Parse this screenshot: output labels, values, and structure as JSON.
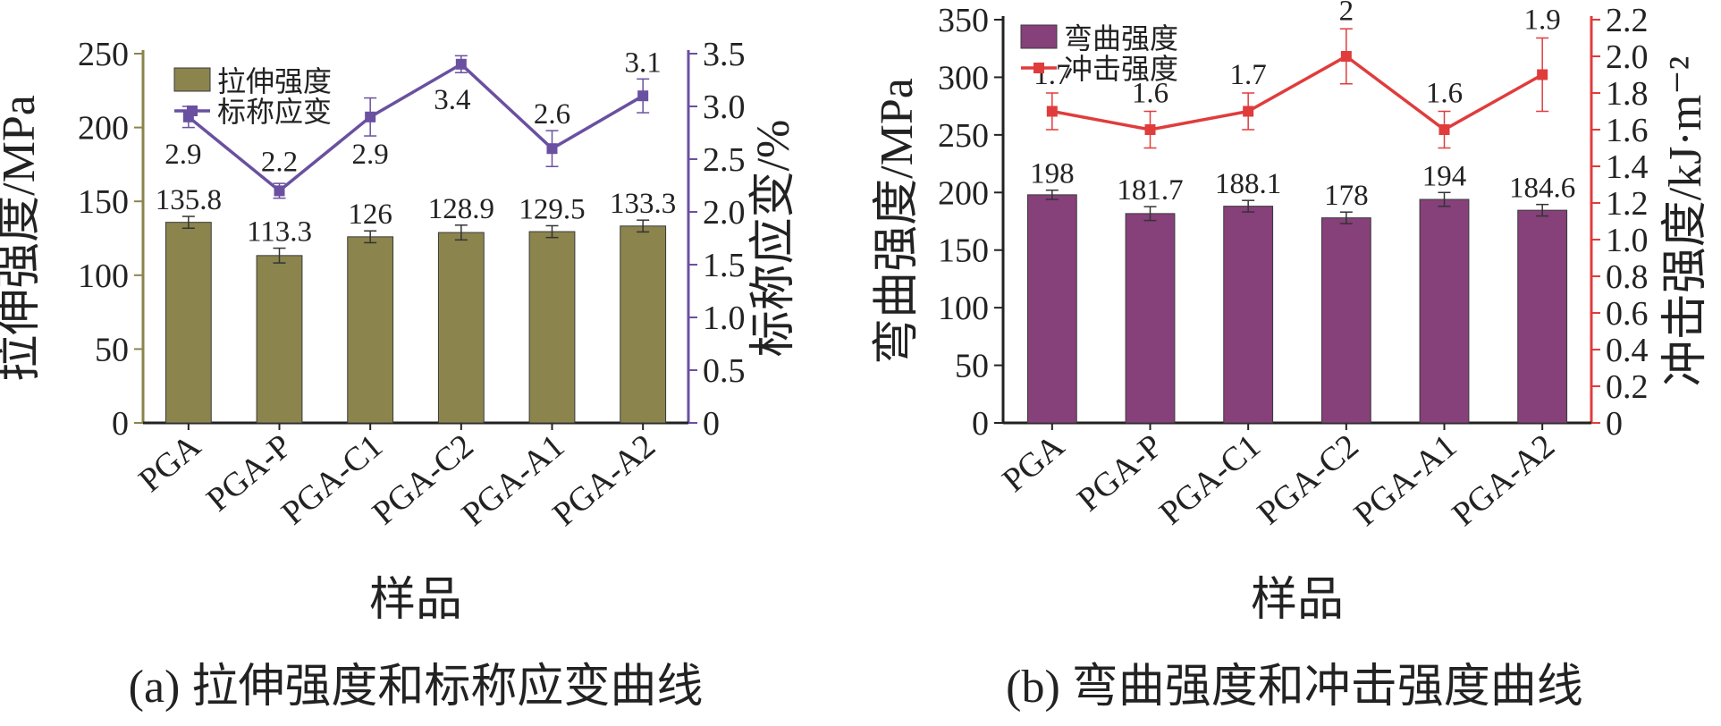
{
  "chart_data": [
    {
      "type": "bar",
      "subplot_label": "(a) 拉伸强度和标称应变曲线",
      "categories": [
        "PGA",
        "PGA-P",
        "PGA-C1",
        "PGA-C2",
        "PGA-A1",
        "PGA-A2"
      ],
      "xlabel": "样品",
      "ylabel_left": "拉伸强度/MPa",
      "ylabel_right": "标称应变/%",
      "ylim_left": [
        0,
        250
      ],
      "yticks_left": [
        "0",
        "50",
        "100",
        "150",
        "200",
        "250"
      ],
      "ylim_right": [
        0,
        3.5
      ],
      "yticks_right": [
        "0",
        "0.5",
        "1.0",
        "1.5",
        "2.0",
        "2.5",
        "3.0",
        "3.5"
      ],
      "legend_position": "top-left",
      "series": [
        {
          "name": "拉伸强度",
          "kind": "bar",
          "axis": "left",
          "color": "#8b844d",
          "values": [
            135.8,
            113.3,
            126,
            128.9,
            129.5,
            133.3
          ],
          "labels": [
            "135.8",
            "113.3",
            "126",
            "128.9",
            "129.5",
            "133.3"
          ],
          "errors": [
            4,
            5,
            4,
            5,
            4,
            4
          ]
        },
        {
          "name": "标称应变",
          "kind": "line",
          "axis": "right",
          "color": "#6a50a0",
          "values": [
            2.9,
            2.2,
            2.9,
            3.4,
            2.6,
            3.1
          ],
          "labels": [
            "2.9",
            "2.2",
            "2.9",
            "3.4",
            "2.6",
            "3.1"
          ],
          "errors": [
            0.1,
            0.07,
            0.18,
            0.08,
            0.17,
            0.16
          ]
        }
      ]
    },
    {
      "type": "bar",
      "subplot_label": "(b) 弯曲强度和冲击强度曲线",
      "categories": [
        "PGA",
        "PGA-P",
        "PGA-C1",
        "PGA-C2",
        "PGA-A1",
        "PGA-A2"
      ],
      "xlabel": "样品",
      "ylabel_left": "弯曲强度/MPa",
      "ylabel_right": "冲击强度/kJ·m⁻²",
      "ylim_left": [
        0,
        350
      ],
      "yticks_left": [
        "0",
        "50",
        "100",
        "150",
        "200",
        "250",
        "300",
        "350"
      ],
      "ylim_right": [
        0,
        2.2
      ],
      "yticks_right": [
        "0",
        "0.2",
        "0.4",
        "0.6",
        "0.8",
        "1.0",
        "1.2",
        "1.4",
        "1.6",
        "1.8",
        "2.0",
        "2.2"
      ],
      "legend_position": "top-left",
      "series": [
        {
          "name": "弯曲强度",
          "kind": "bar",
          "axis": "left",
          "color": "#86407a",
          "values": [
            198,
            181.7,
            188.1,
            178,
            194,
            184.6
          ],
          "labels": [
            "198",
            "181.7",
            "188.1",
            "178",
            "194",
            "184.6"
          ],
          "errors": [
            4,
            6,
            5,
            5,
            6,
            5
          ]
        },
        {
          "name": "冲击强度",
          "kind": "line",
          "axis": "right",
          "color": "#e03c3c",
          "values": [
            1.7,
            1.6,
            1.7,
            2.0,
            1.6,
            1.9
          ],
          "labels": [
            "1.7",
            "1.6",
            "1.7",
            "2",
            "1.6",
            "1.9"
          ],
          "errors": [
            0.1,
            0.1,
            0.1,
            0.15,
            0.1,
            0.2
          ]
        }
      ]
    }
  ]
}
